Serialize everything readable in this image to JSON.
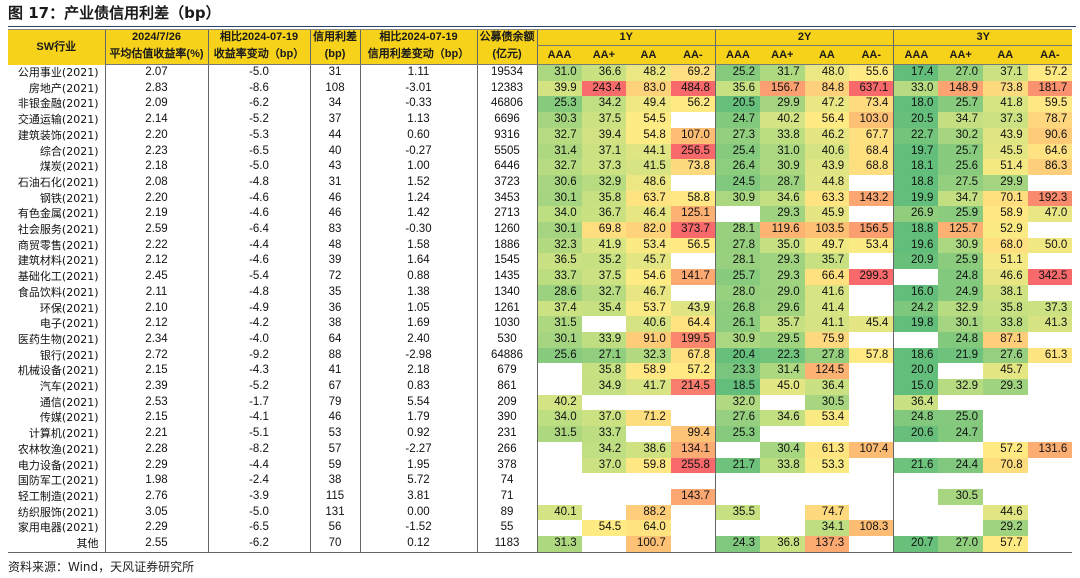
{
  "title": "图 17：产业债信用利差（bp）",
  "source": "资料来源：Wind，天风证券研究所",
  "header": {
    "industry": "SW行业",
    "yield_top": "2024/7/26",
    "yield_bottom": "平均估值收益率(%)",
    "yield_chg_top": "相比2024-07-19",
    "yield_chg_bottom": "收益率变动（bp）",
    "spread_top": "信用利差",
    "spread_bottom": "(bp)",
    "spread_chg_top": "相比2024-07-19",
    "spread_chg_bottom": "信用利差变动（bp）",
    "balance_top": "公募债余额",
    "balance_bottom": "(亿元)",
    "groups": [
      "1Y",
      "2Y",
      "3Y"
    ],
    "ratings": [
      "AAA",
      "AA+",
      "AA",
      "AA-"
    ]
  },
  "rows": [
    {
      "industry": "公用事业(2021)",
      "yield": "2.07",
      "yield_chg": "-5.0",
      "spread": "31",
      "spread_chg": "1.11",
      "balance": "19534",
      "g": [
        "31.0",
        "36.6",
        "48.2",
        "69.2",
        "25.2",
        "31.7",
        "48.0",
        "55.6",
        "17.4",
        "27.0",
        "37.1",
        "57.2"
      ]
    },
    {
      "industry": "房地产(2021)",
      "yield": "2.83",
      "yield_chg": "-8.6",
      "spread": "108",
      "spread_chg": "-3.01",
      "balance": "12383",
      "g": [
        "39.9",
        "243.4",
        "83.0",
        "484.8",
        "35.6",
        "156.7",
        "84.8",
        "637.1",
        "33.0",
        "148.9",
        "73.8",
        "181.7"
      ]
    },
    {
      "industry": "非银金融(2021)",
      "yield": "2.09",
      "yield_chg": "-6.2",
      "spread": "34",
      "spread_chg": "-0.33",
      "balance": "46806",
      "g": [
        "25.3",
        "34.2",
        "49.4",
        "56.2",
        "20.5",
        "29.9",
        "47.2",
        "73.4",
        "18.0",
        "25.7",
        "41.8",
        "59.5"
      ]
    },
    {
      "industry": "交通运输(2021)",
      "yield": "2.14",
      "yield_chg": "-5.2",
      "spread": "37",
      "spread_chg": "1.13",
      "balance": "6696",
      "g": [
        "30.3",
        "37.5",
        "54.5",
        "",
        "24.7",
        "40.2",
        "56.4",
        "103.0",
        "20.5",
        "34.7",
        "37.3",
        "78.7"
      ]
    },
    {
      "industry": "建筑装饰(2021)",
      "yield": "2.20",
      "yield_chg": "-5.3",
      "spread": "44",
      "spread_chg": "0.60",
      "balance": "9316",
      "g": [
        "32.7",
        "39.4",
        "54.8",
        "107.0",
        "27.3",
        "33.8",
        "46.2",
        "67.7",
        "22.7",
        "30.2",
        "43.9",
        "90.6"
      ]
    },
    {
      "industry": "综合(2021)",
      "yield": "2.23",
      "yield_chg": "-6.5",
      "spread": "40",
      "spread_chg": "-0.27",
      "balance": "5505",
      "g": [
        "31.4",
        "37.1",
        "44.1",
        "256.5",
        "25.4",
        "31.0",
        "40.6",
        "68.4",
        "19.7",
        "25.7",
        "45.5",
        "64.6"
      ]
    },
    {
      "industry": "煤炭(2021)",
      "yield": "2.18",
      "yield_chg": "-5.0",
      "spread": "43",
      "spread_chg": "1.00",
      "balance": "6446",
      "g": [
        "32.7",
        "37.3",
        "41.5",
        "73.8",
        "26.4",
        "30.9",
        "43.9",
        "68.8",
        "18.1",
        "25.6",
        "51.4",
        "86.3"
      ]
    },
    {
      "industry": "石油石化(2021)",
      "yield": "2.08",
      "yield_chg": "-4.8",
      "spread": "31",
      "spread_chg": "1.52",
      "balance": "3723",
      "g": [
        "30.6",
        "32.9",
        "48.6",
        "",
        "24.5",
        "28.7",
        "44.8",
        "",
        "18.8",
        "27.5",
        "29.9",
        ""
      ]
    },
    {
      "industry": "钢铁(2021)",
      "yield": "2.20",
      "yield_chg": "-4.6",
      "spread": "46",
      "spread_chg": "1.24",
      "balance": "3453",
      "g": [
        "30.1",
        "35.8",
        "63.7",
        "58.8",
        "30.9",
        "34.6",
        "63.3",
        "143.2",
        "19.9",
        "34.7",
        "70.1",
        "192.3"
      ]
    },
    {
      "industry": "有色金属(2021)",
      "yield": "2.19",
      "yield_chg": "-4.6",
      "spread": "46",
      "spread_chg": "1.42",
      "balance": "2713",
      "g": [
        "34.0",
        "36.7",
        "46.4",
        "125.1",
        "",
        "29.3",
        "45.9",
        "",
        "26.9",
        "25.9",
        "58.9",
        "47.0"
      ]
    },
    {
      "industry": "社会服务(2021)",
      "yield": "2.59",
      "yield_chg": "-6.4",
      "spread": "83",
      "spread_chg": "-0.30",
      "balance": "1260",
      "g": [
        "30.1",
        "69.8",
        "82.0",
        "373.7",
        "28.1",
        "119.6",
        "103.5",
        "156.5",
        "18.8",
        "125.7",
        "52.9",
        ""
      ]
    },
    {
      "industry": "商贸零售(2021)",
      "yield": "2.22",
      "yield_chg": "-4.4",
      "spread": "48",
      "spread_chg": "1.58",
      "balance": "1886",
      "g": [
        "32.3",
        "41.9",
        "53.4",
        "56.5",
        "27.8",
        "35.0",
        "49.7",
        "53.4",
        "19.6",
        "30.9",
        "68.0",
        "50.0"
      ]
    },
    {
      "industry": "建筑材料(2021)",
      "yield": "2.12",
      "yield_chg": "-4.6",
      "spread": "39",
      "spread_chg": "1.64",
      "balance": "1545",
      "g": [
        "36.5",
        "35.2",
        "45.7",
        "",
        "28.1",
        "29.3",
        "35.7",
        "",
        "20.9",
        "25.9",
        "51.1",
        ""
      ]
    },
    {
      "industry": "基础化工(2021)",
      "yield": "2.45",
      "yield_chg": "-5.4",
      "spread": "72",
      "spread_chg": "0.88",
      "balance": "1435",
      "g": [
        "33.7",
        "37.5",
        "54.6",
        "141.7",
        "25.7",
        "29.3",
        "66.4",
        "299.3",
        "",
        "24.8",
        "46.6",
        "342.5"
      ]
    },
    {
      "industry": "食品饮料(2021)",
      "yield": "2.11",
      "yield_chg": "-4.8",
      "spread": "35",
      "spread_chg": "1.38",
      "balance": "1340",
      "g": [
        "28.6",
        "32.7",
        "46.7",
        "",
        "28.0",
        "29.0",
        "41.6",
        "",
        "16.0",
        "24.9",
        "38.1",
        ""
      ]
    },
    {
      "industry": "环保(2021)",
      "yield": "2.10",
      "yield_chg": "-4.9",
      "spread": "36",
      "spread_chg": "1.05",
      "balance": "1261",
      "g": [
        "37.4",
        "35.4",
        "53.7",
        "43.9",
        "26.8",
        "29.6",
        "41.4",
        "",
        "24.2",
        "32.9",
        "35.8",
        "37.3"
      ]
    },
    {
      "industry": "电子(2021)",
      "yield": "2.12",
      "yield_chg": "-4.2",
      "spread": "38",
      "spread_chg": "1.69",
      "balance": "1030",
      "g": [
        "31.5",
        "",
        "40.6",
        "64.4",
        "26.1",
        "35.7",
        "41.1",
        "45.4",
        "19.8",
        "30.1",
        "33.8",
        "41.3"
      ]
    },
    {
      "industry": "医药生物(2021)",
      "yield": "2.34",
      "yield_chg": "-4.0",
      "spread": "64",
      "spread_chg": "2.40",
      "balance": "530",
      "g": [
        "30.1",
        "33.9",
        "91.0",
        "199.5",
        "30.9",
        "29.5",
        "75.9",
        "",
        "",
        "24.8",
        "87.1",
        ""
      ]
    },
    {
      "industry": "银行(2021)",
      "yield": "2.72",
      "yield_chg": "-9.2",
      "spread": "88",
      "spread_chg": "-2.98",
      "balance": "64886",
      "g": [
        "25.6",
        "27.1",
        "32.3",
        "67.8",
        "20.4",
        "22.3",
        "27.8",
        "57.8",
        "18.6",
        "21.9",
        "27.6",
        "61.3"
      ]
    },
    {
      "industry": "机械设备(2021)",
      "yield": "2.15",
      "yield_chg": "-4.3",
      "spread": "41",
      "spread_chg": "2.18",
      "balance": "679",
      "g": [
        "",
        "35.8",
        "58.9",
        "57.2",
        "23.3",
        "31.4",
        "124.5",
        "",
        "20.0",
        "",
        "45.7",
        ""
      ]
    },
    {
      "industry": "汽车(2021)",
      "yield": "2.39",
      "yield_chg": "-5.2",
      "spread": "67",
      "spread_chg": "0.83",
      "balance": "861",
      "g": [
        "",
        "34.9",
        "41.7",
        "214.5",
        "18.5",
        "45.0",
        "36.4",
        "",
        "15.0",
        "32.9",
        "29.3",
        ""
      ]
    },
    {
      "industry": "通信(2021)",
      "yield": "2.53",
      "yield_chg": "-1.7",
      "spread": "79",
      "spread_chg": "5.54",
      "balance": "209",
      "g": [
        "40.2",
        "",
        "",
        "",
        "32.0",
        "",
        "30.5",
        "",
        "36.4",
        "",
        "",
        ""
      ]
    },
    {
      "industry": "传媒(2021)",
      "yield": "2.15",
      "yield_chg": "-4.1",
      "spread": "46",
      "spread_chg": "1.79",
      "balance": "390",
      "g": [
        "34.0",
        "37.0",
        "71.2",
        "",
        "27.6",
        "34.6",
        "53.4",
        "",
        "24.8",
        "25.0",
        "",
        ""
      ]
    },
    {
      "industry": "计算机(2021)",
      "yield": "2.21",
      "yield_chg": "-5.1",
      "spread": "53",
      "spread_chg": "0.92",
      "balance": "231",
      "g": [
        "31.5",
        "33.7",
        "",
        "99.4",
        "25.3",
        "",
        "",
        "",
        "20.6",
        "24.7",
        "",
        ""
      ]
    },
    {
      "industry": "农林牧渔(2021)",
      "yield": "2.28",
      "yield_chg": "-8.2",
      "spread": "57",
      "spread_chg": "-2.27",
      "balance": "266",
      "g": [
        "",
        "34.2",
        "38.6",
        "134.1",
        "",
        "30.4",
        "61.3",
        "107.4",
        "",
        "",
        "57.2",
        "131.6"
      ]
    },
    {
      "industry": "电力设备(2021)",
      "yield": "2.29",
      "yield_chg": "-4.4",
      "spread": "59",
      "spread_chg": "1.95",
      "balance": "378",
      "g": [
        "",
        "37.0",
        "59.8",
        "255.8",
        "21.7",
        "33.8",
        "53.3",
        "",
        "21.6",
        "24.4",
        "70.8",
        ""
      ]
    },
    {
      "industry": "国防军工(2021)",
      "yield": "1.98",
      "yield_chg": "-2.4",
      "spread": "38",
      "spread_chg": "5.72",
      "balance": "74",
      "g": [
        "",
        "",
        "",
        "",
        "",
        "",
        "",
        "",
        "",
        "",
        "",
        ""
      ]
    },
    {
      "industry": "轻工制造(2021)",
      "yield": "2.76",
      "yield_chg": "-3.9",
      "spread": "115",
      "spread_chg": "3.81",
      "balance": "71",
      "g": [
        "",
        "",
        "",
        "143.7",
        "",
        "",
        "",
        "",
        "",
        "30.5",
        "",
        ""
      ]
    },
    {
      "industry": "纺织服饰(2021)",
      "yield": "3.05",
      "yield_chg": "-5.0",
      "spread": "131",
      "spread_chg": "0.00",
      "balance": "89",
      "g": [
        "40.1",
        "",
        "88.2",
        "",
        "35.5",
        "",
        "74.7",
        "",
        "",
        "",
        "44.6",
        ""
      ]
    },
    {
      "industry": "家用电器(2021)",
      "yield": "2.29",
      "yield_chg": "-6.5",
      "spread": "56",
      "spread_chg": "-1.52",
      "balance": "55",
      "g": [
        "",
        "54.5",
        "64.0",
        "",
        "",
        "",
        "34.1",
        "108.3",
        "",
        "",
        "29.2",
        ""
      ]
    },
    {
      "industry": "其他",
      "yield": "2.55",
      "yield_chg": "-6.2",
      "spread": "70",
      "spread_chg": "0.12",
      "balance": "1183",
      "g": [
        "31.3",
        "",
        "100.7",
        "",
        "24.3",
        "36.8",
        "137.3",
        "",
        "20.7",
        "27.0",
        "57.7",
        ""
      ]
    }
  ]
}
